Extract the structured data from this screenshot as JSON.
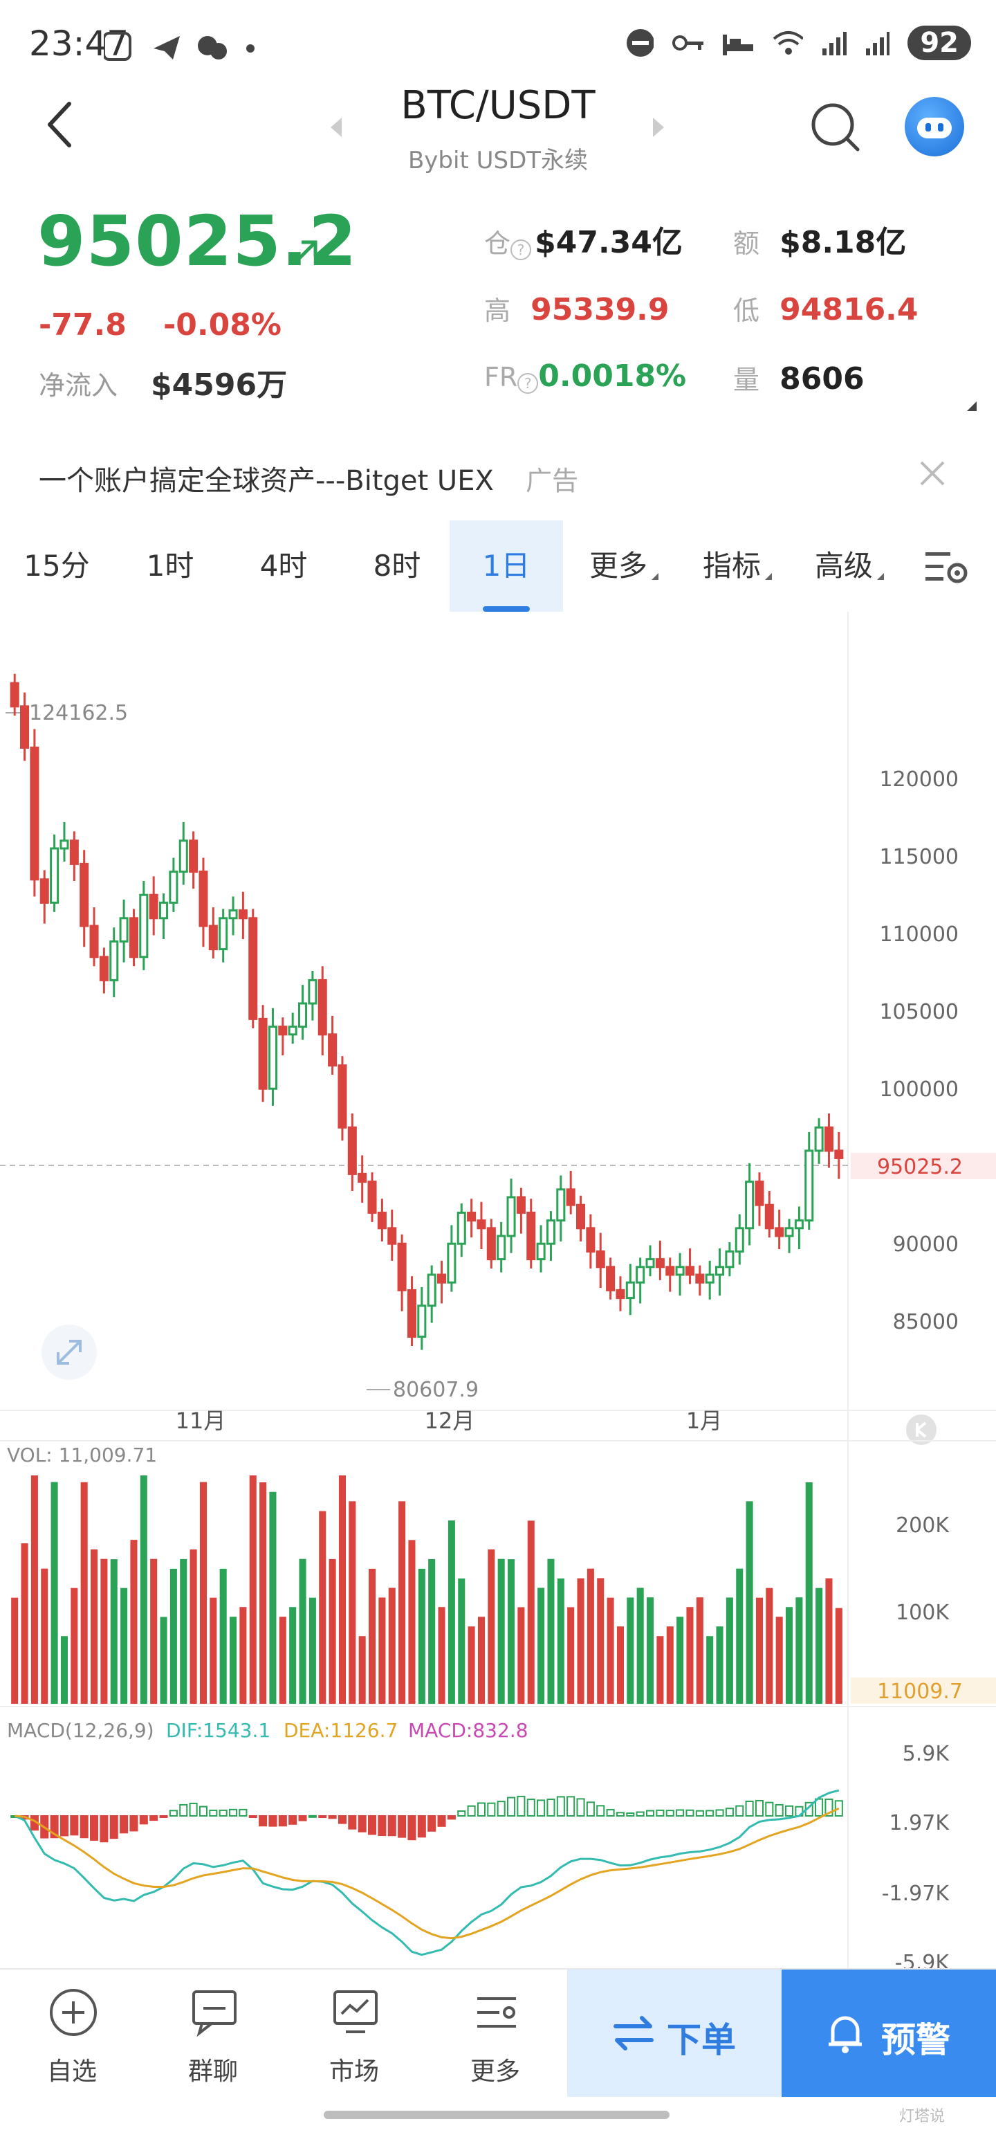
{
  "status_bar": {
    "time": "23:47",
    "battery": "92"
  },
  "header": {
    "pair": "BTC/USDT",
    "exchange": "Bybit USDT永续"
  },
  "price_panel": {
    "last_price": "95025.2",
    "change": "-77.8",
    "change_pct": "-0.08%",
    "net_inflow_label": "净流入",
    "net_inflow_value": "$4596万",
    "open_interest_label": "仓",
    "open_interest_value": "$47.34亿",
    "turnover_label": "额",
    "turnover_value": "$8.18亿",
    "high_label": "高",
    "high_value": "95339.9",
    "low_label": "低",
    "low_value": "94816.4",
    "funding_label": "FR",
    "funding_value": "0.0018%",
    "volume_label": "量",
    "volume_value": "8606"
  },
  "ad": {
    "text": "一个账户搞定全球资产---Bitget UEX",
    "tag": "广告"
  },
  "tabs": [
    {
      "label": "15分"
    },
    {
      "label": "1时"
    },
    {
      "label": "4时"
    },
    {
      "label": "8时"
    },
    {
      "label": "1日",
      "active": true
    },
    {
      "label": "更多"
    },
    {
      "label": "指标"
    },
    {
      "label": "高级"
    }
  ],
  "chart_data": {
    "type": "candlestick",
    "y_ticks": [
      "120000",
      "115000",
      "110000",
      "105000",
      "100000",
      "90000",
      "85000"
    ],
    "current_price_label": "95025.2",
    "max_label": "124162.5",
    "min_label": "80607.9",
    "x_labels": [
      "11月",
      "12月",
      "1月"
    ],
    "ohlc_approx_close": [
      124162,
      121500,
      113000,
      111500,
      115000,
      115500,
      114000,
      110000,
      108000,
      106500,
      109000,
      110500,
      108000,
      112000,
      110500,
      111500,
      113500,
      115500,
      113500,
      110000,
      108500,
      110500,
      111000,
      110500,
      104000,
      99500,
      103500,
      103000,
      103500,
      105000,
      106500,
      103000,
      101000,
      97000,
      94000,
      93500,
      91500,
      90500,
      89500,
      86500,
      83500,
      85500,
      87500,
      87000,
      89500,
      91500,
      91000,
      90500,
      88500,
      90000,
      92500,
      91500,
      88500,
      89500,
      91000,
      93000,
      92000,
      90500,
      89000,
      88000,
      86500,
      86000,
      87000,
      88000,
      88500,
      88000,
      87500,
      88000,
      87500,
      87000,
      87500,
      88000,
      89000,
      90500,
      93500,
      92000,
      90500,
      90000,
      90500,
      91000,
      95500,
      97000,
      95500,
      95025
    ],
    "volume": {
      "label": "VOL: 11,009.71",
      "y_ticks": [
        "200K",
        "100K"
      ],
      "current_label": "11009.7"
    },
    "macd": {
      "params": "MACD(12,26,9)",
      "dif": "DIF:1543.1",
      "dea": "DEA:1126.7",
      "macd": "MACD:832.8",
      "y_ticks": [
        "5.9K",
        "1.97K",
        "-1.97K",
        "-5.9K"
      ]
    }
  },
  "bottom_nav": {
    "items": [
      {
        "label": "自选"
      },
      {
        "label": "群聊"
      },
      {
        "label": "市场"
      },
      {
        "label": "更多"
      }
    ],
    "order_label": "下单",
    "alert_label": "预警"
  },
  "watermark": "灯塔说"
}
